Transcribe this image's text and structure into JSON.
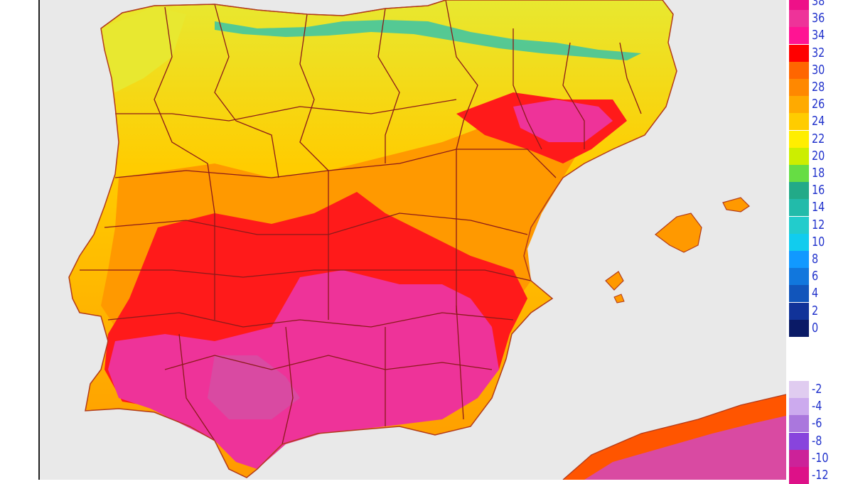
{
  "map": {
    "subject": "temperature map of the Iberian Peninsula and Balearic Islands",
    "land_colors": {
      "cool_peaks": "#22c0b8",
      "mild": "#e8e830",
      "warm": "#ffcc00",
      "hot": "#ff9900",
      "very_hot": "#ff5500",
      "extreme": "#ff1a1a",
      "max": "#ee3399"
    },
    "sea_color": "#e9e9e9",
    "border_color": "#8b1a1a"
  },
  "legend": {
    "upper_scale": [
      {
        "label": "38",
        "color": "#ee1188"
      },
      {
        "label": "36",
        "color": "#ee3399"
      },
      {
        "label": "34",
        "color": "#ff1493"
      },
      {
        "label": "32",
        "color": "#ff0000"
      },
      {
        "label": "30",
        "color": "#ff6600"
      },
      {
        "label": "28",
        "color": "#ff8800"
      },
      {
        "label": "26",
        "color": "#ffaa00"
      },
      {
        "label": "24",
        "color": "#ffcc00"
      },
      {
        "label": "22",
        "color": "#ffee00"
      },
      {
        "label": "20",
        "color": "#ccee00"
      },
      {
        "label": "18",
        "color": "#66dd44"
      },
      {
        "label": "16",
        "color": "#22aa88"
      },
      {
        "label": "14",
        "color": "#22bbaa"
      },
      {
        "label": "12",
        "color": "#22cccc"
      },
      {
        "label": "10",
        "color": "#11ccee"
      },
      {
        "label": "8",
        "color": "#1199ff"
      },
      {
        "label": "6",
        "color": "#1177dd"
      },
      {
        "label": "4",
        "color": "#1155bb"
      },
      {
        "label": "2",
        "color": "#113399"
      },
      {
        "label": "0",
        "color": "#0a1a66"
      }
    ],
    "lower_scale": [
      {
        "label": "-2",
        "color": "#e0ccf0"
      },
      {
        "label": "-4",
        "color": "#ccaaee"
      },
      {
        "label": "-6",
        "color": "#aa77dd"
      },
      {
        "label": "-8",
        "color": "#8844dd"
      },
      {
        "label": "-10",
        "color": "#cc2299"
      },
      {
        "label": "-12",
        "color": "#dd1188"
      }
    ]
  }
}
